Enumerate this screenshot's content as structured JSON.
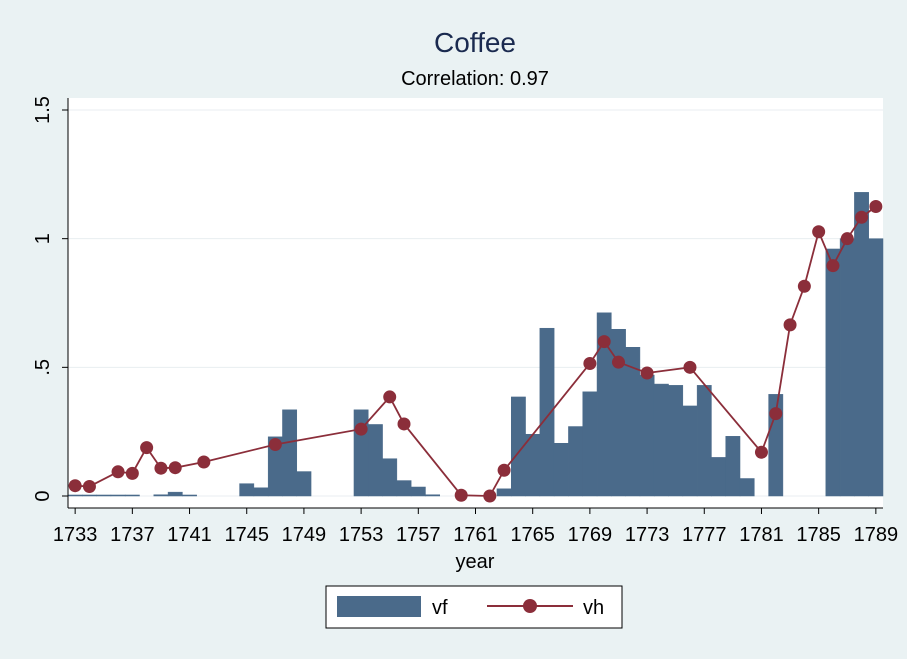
{
  "chart_data": {
    "type": "bar+line",
    "title": "Coffee",
    "subtitle": "Correlation: 0.97",
    "xlabel": "year",
    "ylabel": "",
    "xlim": [
      1732.5,
      1789.5
    ],
    "ylim": [
      0,
      1.5
    ],
    "x_ticks": [
      1733,
      1737,
      1741,
      1745,
      1749,
      1753,
      1757,
      1761,
      1765,
      1769,
      1773,
      1777,
      1781,
      1785,
      1789
    ],
    "y_ticks": [
      {
        "value": 0,
        "label": "0"
      },
      {
        "value": 0.5,
        "label": ".5"
      },
      {
        "value": 1,
        "label": "1"
      },
      {
        "value": 1.5,
        "label": "1.5"
      }
    ],
    "grid": true,
    "legend_position": "bottom",
    "colors": {
      "bar": "#4a6a8a",
      "line": "#8b2e3a",
      "plot_bg": "#ffffff",
      "page_bg": "#eaf2f3",
      "grid": "#e8eef0"
    },
    "series": [
      {
        "name": "vf",
        "type": "bar",
        "points": [
          [
            1733,
            0.004
          ],
          [
            1734,
            0.004
          ],
          [
            1735,
            0.004
          ],
          [
            1736,
            0.004
          ],
          [
            1737,
            0.004
          ],
          [
            1739,
            0.005
          ],
          [
            1740,
            0.015
          ],
          [
            1741,
            0.004
          ],
          [
            1745,
            0.048
          ],
          [
            1746,
            0.032
          ],
          [
            1747,
            0.23
          ],
          [
            1748,
            0.335
          ],
          [
            1749,
            0.095
          ],
          [
            1753,
            0.335
          ],
          [
            1754,
            0.278
          ],
          [
            1755,
            0.145
          ],
          [
            1756,
            0.06
          ],
          [
            1757,
            0.035
          ],
          [
            1758,
            0.005
          ],
          [
            1763,
            0.028
          ],
          [
            1764,
            0.385
          ],
          [
            1765,
            0.24
          ],
          [
            1766,
            0.652
          ],
          [
            1767,
            0.205
          ],
          [
            1768,
            0.27
          ],
          [
            1769,
            0.405
          ],
          [
            1770,
            0.712
          ],
          [
            1771,
            0.648
          ],
          [
            1772,
            0.578
          ],
          [
            1773,
            0.47
          ],
          [
            1774,
            0.435
          ],
          [
            1775,
            0.43
          ],
          [
            1776,
            0.35
          ],
          [
            1777,
            0.43
          ],
          [
            1778,
            0.15
          ],
          [
            1779,
            0.232
          ],
          [
            1780,
            0.068
          ],
          [
            1782,
            0.395
          ],
          [
            1786,
            0.96
          ],
          [
            1787,
            1.0
          ],
          [
            1788,
            1.18
          ],
          [
            1789,
            1.0
          ]
        ]
      },
      {
        "name": "vh",
        "type": "line",
        "points": [
          [
            1733,
            0.04
          ],
          [
            1734,
            0.037
          ],
          [
            1736,
            0.094
          ],
          [
            1737,
            0.088
          ],
          [
            1738,
            0.188
          ],
          [
            1739,
            0.108
          ],
          [
            1740,
            0.11
          ],
          [
            1742,
            0.132
          ],
          [
            1747,
            0.2
          ],
          [
            1753,
            0.26
          ],
          [
            1755,
            0.385
          ],
          [
            1756,
            0.28
          ],
          [
            1760,
            0.003
          ],
          [
            1762,
            0.0
          ],
          [
            1763,
            0.1
          ],
          [
            1769,
            0.515
          ],
          [
            1770,
            0.6
          ],
          [
            1771,
            0.52
          ],
          [
            1773,
            0.478
          ],
          [
            1776,
            0.5
          ],
          [
            1781,
            0.17
          ],
          [
            1782,
            0.32
          ],
          [
            1783,
            0.665
          ],
          [
            1784,
            0.815
          ],
          [
            1785,
            1.027
          ],
          [
            1786,
            0.895
          ],
          [
            1787,
            1.0
          ],
          [
            1788,
            1.083
          ],
          [
            1789,
            1.125
          ]
        ]
      }
    ]
  }
}
